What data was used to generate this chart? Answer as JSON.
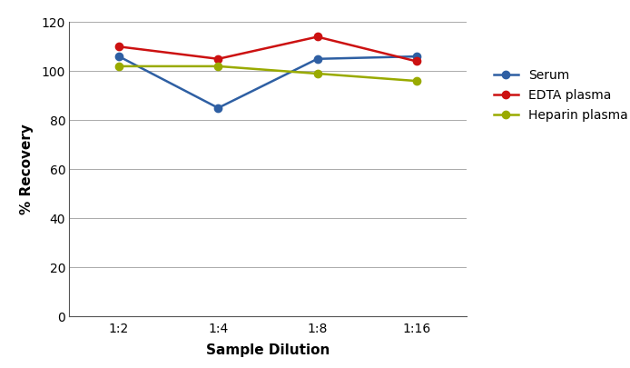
{
  "x_labels": [
    "1:2",
    "1:4",
    "1:8",
    "1:16"
  ],
  "x_positions": [
    0,
    1,
    2,
    3
  ],
  "serum": [
    106,
    85,
    105,
    106
  ],
  "edta_plasma": [
    110,
    105,
    114,
    104
  ],
  "heparin_plasma": [
    102,
    102,
    99,
    96
  ],
  "serum_color": "#2e5fa3",
  "edta_color": "#cc1111",
  "heparin_color": "#99aa00",
  "xlabel": "Sample Dilution",
  "ylabel": "% Recovery",
  "ylim": [
    0,
    120
  ],
  "yticks": [
    0,
    20,
    40,
    60,
    80,
    100,
    120
  ],
  "legend_labels": [
    "Serum",
    "EDTA plasma",
    "Heparin plasma"
  ],
  "marker": "o",
  "linewidth": 1.8,
  "markersize": 6,
  "grid_color": "#aaaaaa",
  "grid_linewidth": 0.7
}
